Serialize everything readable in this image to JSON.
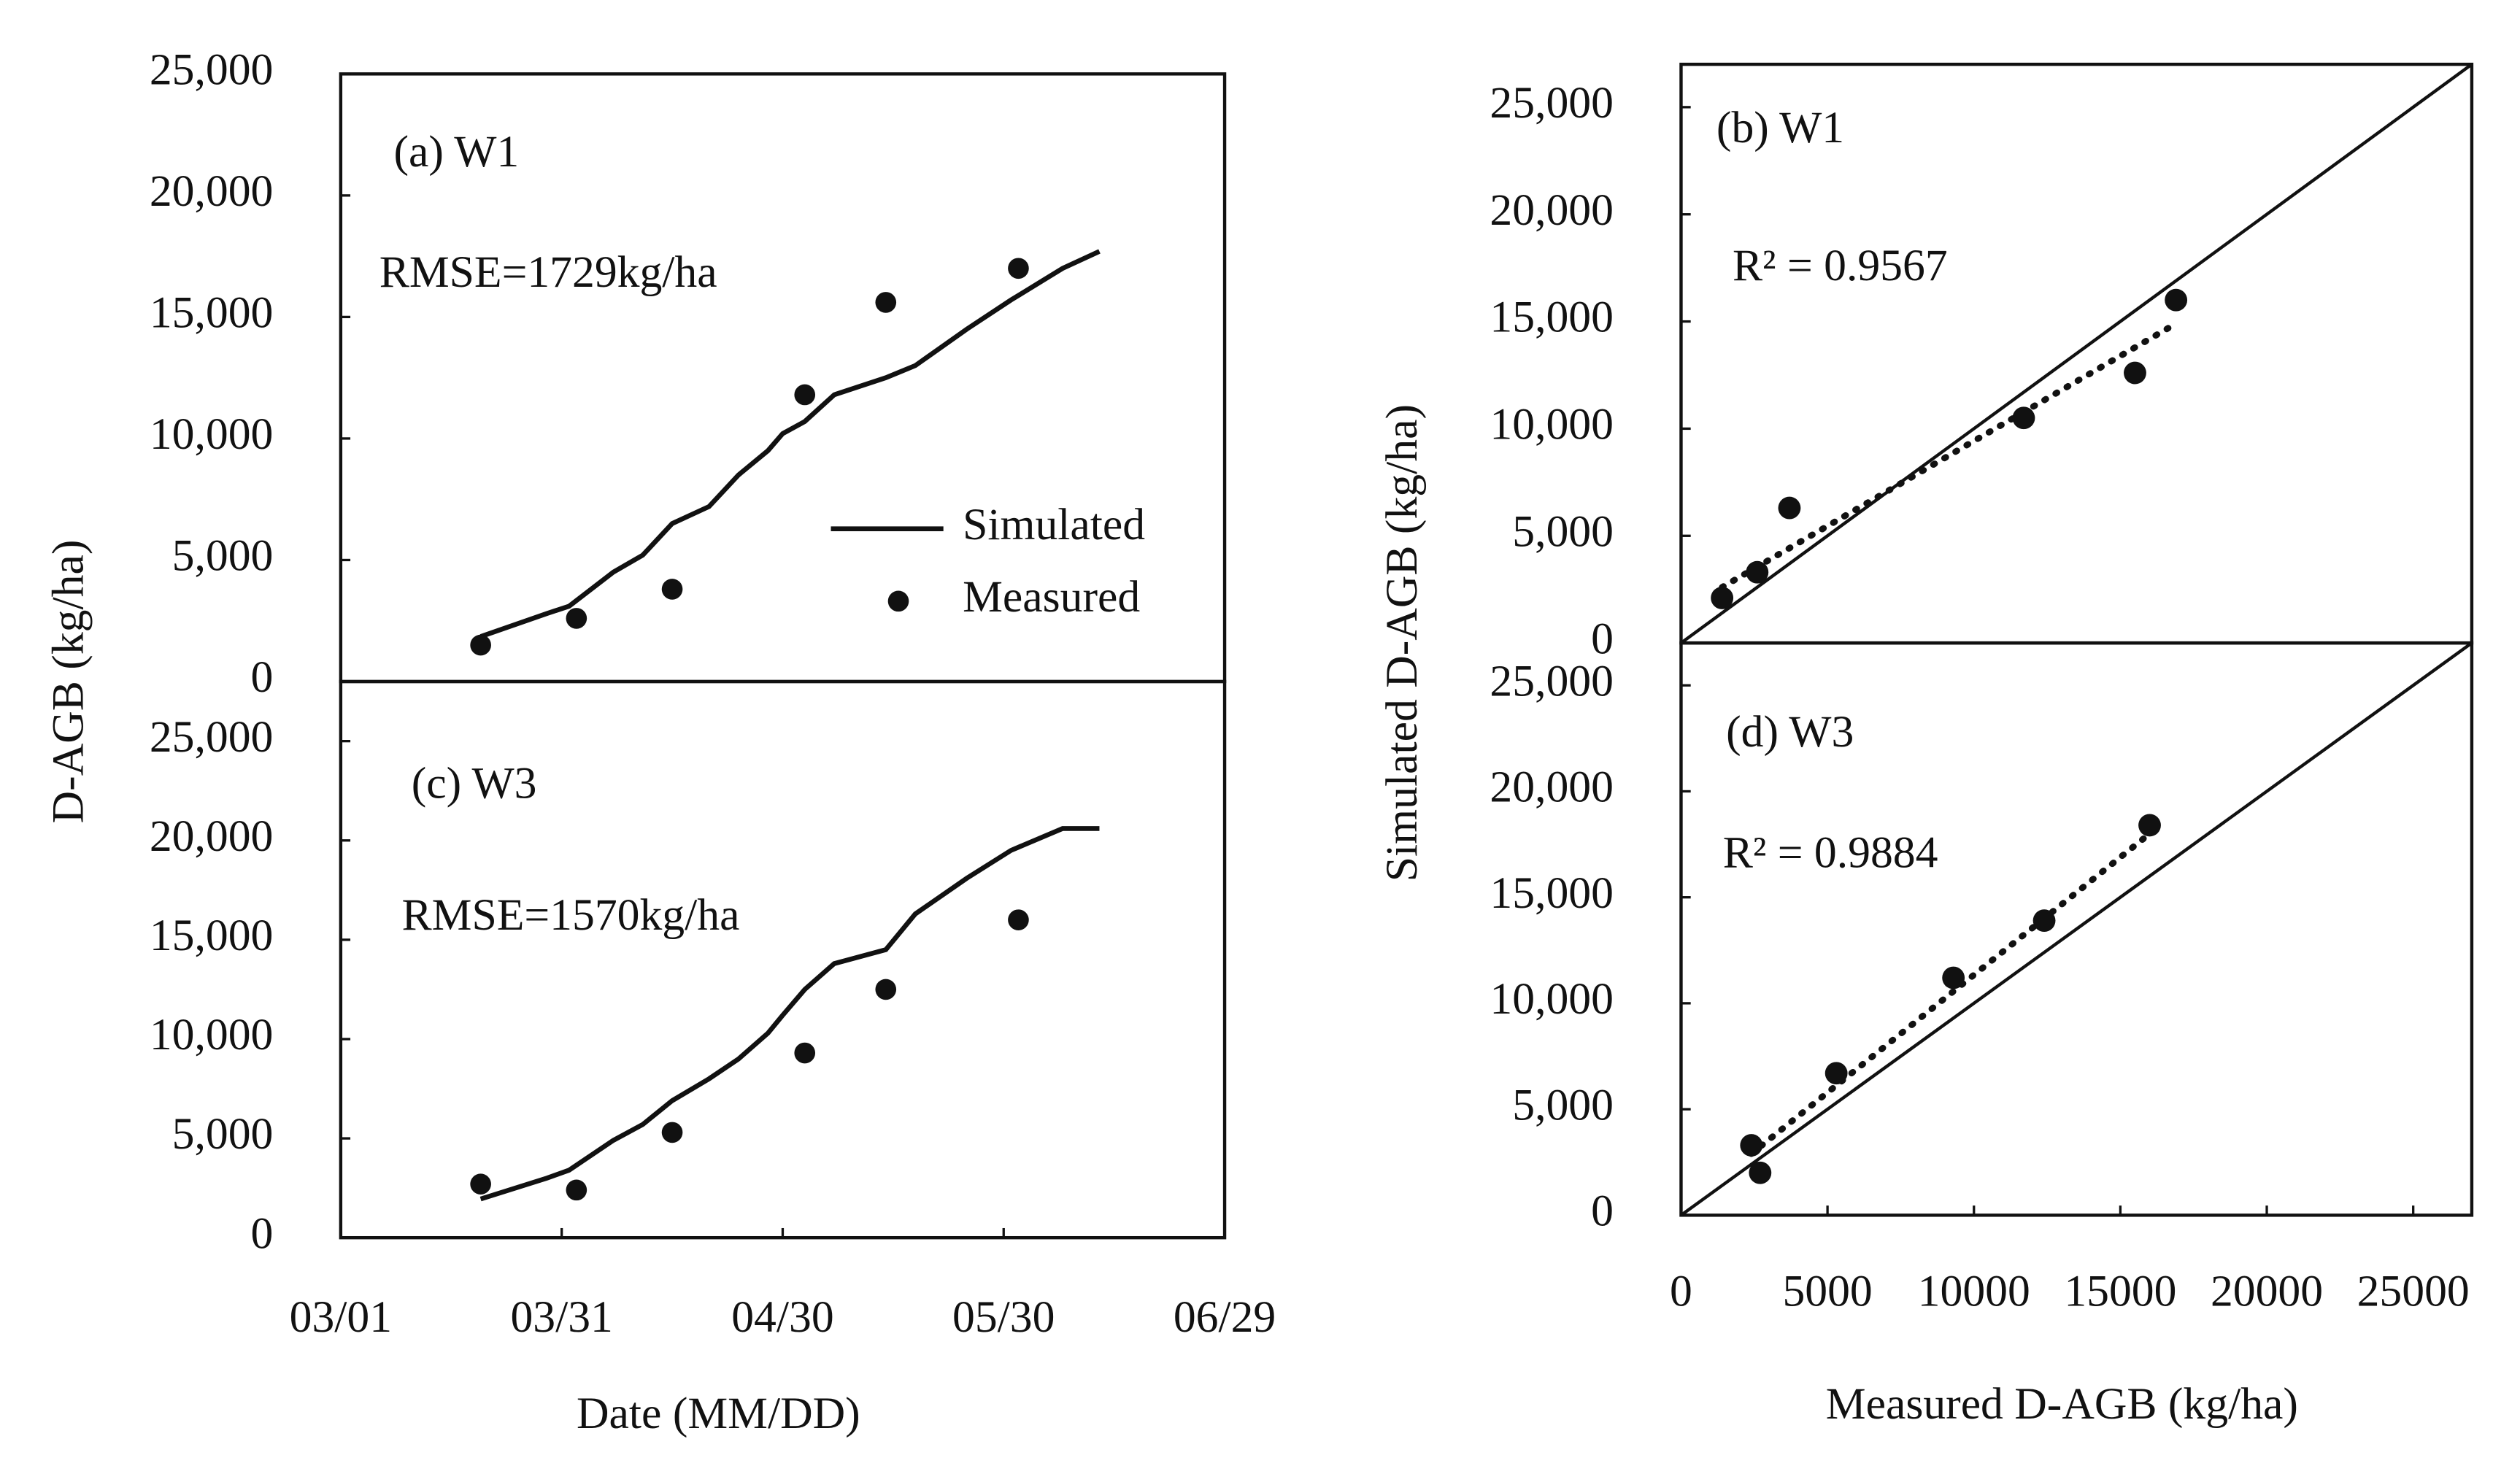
{
  "chart_data": [
    {
      "type": "line",
      "ylabel": "D-AGB (kg/ha)",
      "annotations": [
        "(a) W1",
        "RMSE=1729kg/ha"
      ],
      "legend": "lower right",
      "xlim": [
        "03/01",
        "06/29"
      ],
      "ylim": [
        0,
        25000
      ],
      "yticks": [
        0,
        {
          "value": 5000,
          "label": "5,000"
        },
        {
          "value": 10000,
          "label": "10,000"
        },
        {
          "value": 15000,
          "label": "15,000"
        },
        {
          "value": 20000,
          "label": "20,000"
        },
        {
          "value": 25000,
          "label": "25,000"
        }
      ],
      "series": [
        {
          "name": "Simulated",
          "style": "line",
          "color": "#111111",
          "x": [
            "03/20",
            "03/29",
            "04/01",
            "04/07",
            "04/11",
            "04/15",
            "04/20",
            "04/24",
            "04/28",
            "04/30",
            "05/03",
            "05/07",
            "05/14",
            "05/18",
            "05/25",
            "05/31",
            "06/07",
            "06/12"
          ],
          "values": [
            1850,
            2800,
            3100,
            4500,
            5200,
            6500,
            7200,
            8500,
            9500,
            10200,
            10700,
            11800,
            12500,
            13000,
            14500,
            15700,
            17000,
            17700
          ]
        },
        {
          "name": "Measured",
          "style": "marker",
          "color": "#111111",
          "x": [
            "03/20",
            "04/02",
            "04/15",
            "05/03",
            "05/14",
            "06/01"
          ],
          "values": [
            1500,
            2600,
            3800,
            11800,
            15600,
            17000
          ]
        }
      ]
    },
    {
      "type": "scatter",
      "ylabel": "Simulated D-AGB (kg/ha)",
      "annotations": [
        "(b) W1",
        "R² = 0.9567"
      ],
      "xlim": [
        0,
        27000
      ],
      "ylim": [
        0,
        27000
      ],
      "yticks": [
        0,
        {
          "value": 5000,
          "label": "5,000"
        },
        {
          "value": 10000,
          "label": "10,000"
        },
        {
          "value": 15000,
          "label": "15,000"
        },
        {
          "value": 20000,
          "label": "20,000"
        },
        {
          "value": 25000,
          "label": "25,000"
        }
      ],
      "color": "#111111",
      "x": [
        1400,
        2600,
        3700,
        11700,
        15500,
        16900
      ],
      "values": [
        2100,
        3300,
        6300,
        10500,
        12600,
        16000
      ],
      "trendline": {
        "x": [
          1400,
          16900
        ],
        "values": [
          2600,
          14900
        ]
      }
    },
    {
      "type": "line",
      "xlabel": "Date (MM/DD)",
      "annotations": [
        "(c) W3",
        "RMSE=1570kg/ha"
      ],
      "xlim": [
        "03/01",
        "06/29"
      ],
      "ylim": [
        0,
        28000
      ],
      "xticks": [
        "03/01",
        "03/31",
        "04/30",
        "05/30",
        "06/29"
      ],
      "yticks": [
        0,
        {
          "value": 5000,
          "label": "5,000"
        },
        {
          "value": 10000,
          "label": "10,000"
        },
        {
          "value": 15000,
          "label": "15,000"
        },
        {
          "value": 20000,
          "label": "20,000"
        },
        {
          "value": 25000,
          "label": "25,000"
        }
      ],
      "series": [
        {
          "name": "Simulated",
          "style": "line",
          "color": "#111111",
          "x": [
            "03/20",
            "03/29",
            "04/01",
            "04/07",
            "04/11",
            "04/15",
            "04/20",
            "04/24",
            "04/28",
            "04/30",
            "05/03",
            "05/07",
            "05/14",
            "05/18",
            "05/25",
            "05/31",
            "06/07",
            "06/12"
          ],
          "values": [
            1950,
            3000,
            3400,
            4900,
            5700,
            6900,
            8000,
            9000,
            10300,
            11200,
            12500,
            13800,
            14500,
            16300,
            18100,
            19500,
            20600,
            20600
          ]
        },
        {
          "name": "Measured",
          "style": "marker",
          "color": "#111111",
          "x": [
            "03/20",
            "04/02",
            "04/15",
            "05/03",
            "05/14",
            "06/01"
          ],
          "values": [
            2700,
            2400,
            5300,
            9300,
            12500,
            16000
          ]
        }
      ]
    },
    {
      "type": "scatter",
      "xlabel": "Measured D-AGB (kg/ha)",
      "annotations": [
        "(d) W3",
        "R² = 0.9884"
      ],
      "xlim": [
        0,
        27000
      ],
      "ylim": [
        0,
        27000
      ],
      "xticks": [
        0,
        5000,
        10000,
        15000,
        20000,
        25000
      ],
      "yticks": [
        0,
        {
          "value": 5000,
          "label": "5,000"
        },
        {
          "value": 10000,
          "label": "10,000"
        },
        {
          "value": 15000,
          "label": "15,000"
        },
        {
          "value": 20000,
          "label": "20,000"
        },
        {
          "value": 25000,
          "label": "25,000"
        }
      ],
      "color": "#111111",
      "x": [
        2400,
        2700,
        5300,
        9300,
        12400,
        16000
      ],
      "values": [
        3300,
        2000,
        6700,
        11200,
        13900,
        18400
      ],
      "trendline": {
        "x": [
          2400,
          16000
        ],
        "values": [
          2900,
          18000
        ]
      }
    }
  ]
}
